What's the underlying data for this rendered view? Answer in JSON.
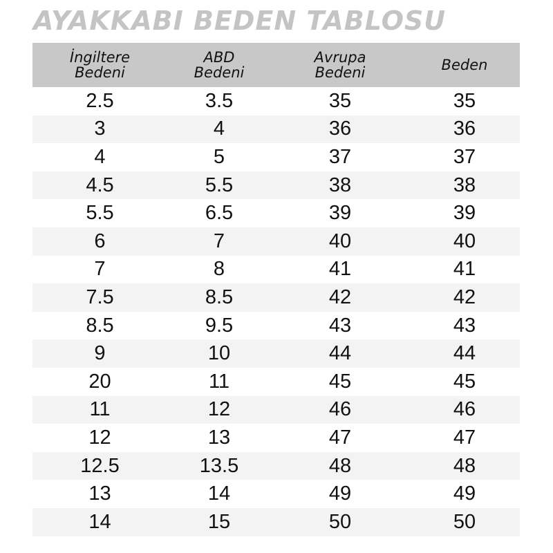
{
  "title": "AYAKKABI BEDEN TABLOSU",
  "headers": [
    [
      "İngiltere",
      "Bedeni"
    ],
    [
      "ABD",
      "Bedeni"
    ],
    [
      "Avrupa",
      "Bedeni"
    ],
    [
      "Beden"
    ]
  ],
  "rows": [
    [
      "2.5",
      "3.5",
      "35",
      "35"
    ],
    [
      "3",
      "4",
      "36",
      "36"
    ],
    [
      "4",
      "5",
      "37",
      "37"
    ],
    [
      "4.5",
      "5.5",
      "38",
      "38"
    ],
    [
      "5.5",
      "6.5",
      "39",
      "39"
    ],
    [
      "6",
      "7",
      "40",
      "40"
    ],
    [
      "7",
      "8",
      "41",
      "41"
    ],
    [
      "7.5",
      "8.5",
      "42",
      "42"
    ],
    [
      "8.5",
      "9.5",
      "43",
      "43"
    ],
    [
      "9",
      "10",
      "44",
      "44"
    ],
    [
      "20",
      "11",
      "45",
      "45"
    ],
    [
      "11",
      "12",
      "46",
      "46"
    ],
    [
      "12",
      "13",
      "47",
      "47"
    ],
    [
      "12.5",
      "13.5",
      "48",
      "48"
    ],
    [
      "13",
      "14",
      "49",
      "49"
    ],
    [
      "14",
      "15",
      "50",
      "50"
    ]
  ],
  "colors": {
    "header_bg": "#c8c8c8",
    "alt_row_bg": "#f3f3f3",
    "title": "#c4c4c4"
  }
}
